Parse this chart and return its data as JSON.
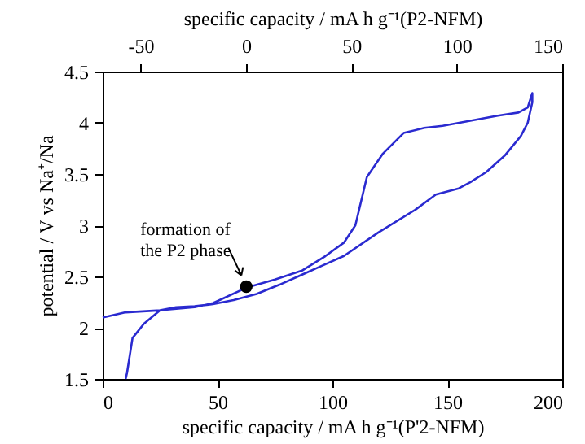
{
  "chart_data": {
    "type": "line",
    "xlabel": "specific capacity / mA h g⁻¹(P'2-NFM)",
    "x2label": "specific capacity / mA h g⁻¹(P2-NFM)",
    "ylabel": "potential / V vs Na⁺/Na",
    "xlim": [
      0,
      200
    ],
    "xticks": [
      0,
      50,
      100,
      150,
      200
    ],
    "x2lim": [
      -68,
      150
    ],
    "x2ticks": [
      -50,
      0,
      50,
      100,
      150
    ],
    "ylim": [
      1.5,
      4.5
    ],
    "yticks": [
      1.5,
      2,
      2.5,
      3,
      3.5,
      4,
      4.5
    ],
    "grid": false,
    "series": [
      {
        "type": "line",
        "color": "#2a2ad0",
        "x": [
          0,
          10,
          25,
          40,
          48,
          62.5,
          75,
          87,
          97,
          105,
          110,
          115,
          122,
          131,
          140,
          148,
          160,
          172,
          181,
          185,
          187,
          187,
          185,
          182,
          175,
          167,
          160,
          155,
          145,
          136,
          120,
          105,
          95,
          87,
          77,
          67,
          57,
          48,
          40,
          32,
          25,
          18,
          13,
          10.6,
          10
        ],
        "values": [
          2.1,
          2.15,
          2.17,
          2.2,
          2.24,
          2.39,
          2.47,
          2.56,
          2.7,
          2.83,
          3.0,
          3.47,
          3.7,
          3.9,
          3.95,
          3.97,
          4.02,
          4.07,
          4.1,
          4.15,
          4.29,
          4.2,
          4.0,
          3.87,
          3.68,
          3.52,
          3.42,
          3.36,
          3.3,
          3.15,
          2.93,
          2.7,
          2.6,
          2.52,
          2.42,
          2.33,
          2.27,
          2.23,
          2.21,
          2.2,
          2.17,
          2.04,
          1.9,
          1.56,
          1.5
        ]
      },
      {
        "type": "scatter",
        "color": "#000000",
        "marker": "circle",
        "x": [
          62.5
        ],
        "values": [
          2.4
        ]
      }
    ],
    "annotations": [
      {
        "text": "formation of\nthe P2 phase",
        "x": 62.5,
        "y": 2.4
      }
    ]
  }
}
